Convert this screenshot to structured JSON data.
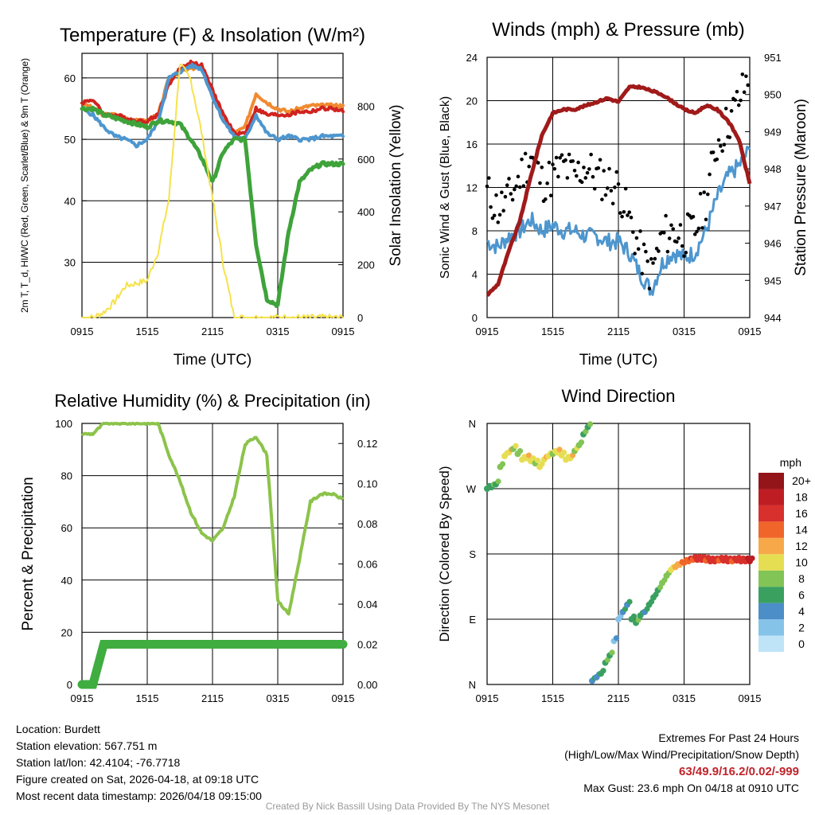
{
  "chart_data": [
    {
      "type": "line",
      "title": "Temperature (F) & Insolation (W/m²)",
      "xlabel": "Time (UTC)",
      "ylabel_left": "2m T, T_d, HI/WC (Red, Green, Scarlet/Blue) & 9m T (Orange)",
      "ylabel_right": "Solar Insolation (Yellow)",
      "x_ticks": [
        "0915",
        "1515",
        "2115",
        "0315",
        "0915"
      ],
      "ylim_left": [
        21,
        64
      ],
      "y_ticks_left": [
        30,
        40,
        50,
        60
      ],
      "ylim_right": [
        0,
        1000
      ],
      "y_ticks_right": [
        0,
        200,
        400,
        600,
        800
      ],
      "x_hours": [
        0,
        1,
        2,
        3,
        4,
        5,
        6,
        7,
        8,
        9,
        10,
        11,
        12,
        13,
        14,
        15,
        16,
        17,
        18,
        19,
        20,
        21,
        22,
        23,
        24
      ],
      "series": [
        {
          "name": "9m T",
          "color": "#f08a30",
          "axis": "left",
          "values": [
            56,
            55,
            54,
            54,
            53.5,
            53,
            53,
            54,
            60,
            61,
            61.5,
            62,
            57,
            53,
            51,
            52,
            57.5,
            56,
            55,
            54.5,
            55,
            55.5,
            55.5,
            55.5,
            55.5
          ]
        },
        {
          "name": "2m T",
          "color": "#d0231f",
          "axis": "left",
          "values": [
            56,
            56.5,
            54,
            54,
            53.5,
            53,
            53,
            54,
            59,
            61.5,
            62.5,
            62,
            58,
            54,
            51,
            51,
            55,
            54,
            54,
            54,
            54.5,
            54.5,
            55,
            55,
            54.5
          ]
        },
        {
          "name": "HI/WC",
          "color": "#4d96cf",
          "axis": "left",
          "values": [
            55,
            54,
            52,
            50.5,
            50,
            49,
            50,
            53,
            60,
            61,
            62,
            61.5,
            57,
            53,
            50.5,
            50,
            54,
            51,
            50,
            50.5,
            50,
            50,
            50.5,
            50.5,
            50.5
          ]
        },
        {
          "name": "T_d",
          "color": "#3ea33a",
          "axis": "left",
          "values": [
            55,
            55,
            54,
            53.5,
            53,
            52.5,
            52,
            53,
            53,
            52.5,
            50,
            47,
            43,
            48,
            50,
            50,
            33,
            24,
            23,
            35,
            43,
            45,
            46,
            46,
            46
          ]
        },
        {
          "name": "Solar Insolation",
          "color": "#f5e24a",
          "axis": "right",
          "values": [
            0,
            0,
            20,
            60,
            120,
            130,
            140,
            250,
            450,
            960,
            900,
            700,
            450,
            200,
            0,
            0,
            0,
            0,
            0,
            0,
            0,
            0,
            0,
            0,
            0
          ]
        }
      ]
    },
    {
      "type": "line",
      "title": "Winds (mph) & Pressure (mb)",
      "xlabel": "Time (UTC)",
      "ylabel_left": "Sonic Wind & Gust (Blue, Black)",
      "ylabel_right": "Station Pressure (Maroon)",
      "x_ticks": [
        "0915",
        "1515",
        "2115",
        "0315",
        "0915"
      ],
      "ylim_left": [
        0,
        24
      ],
      "y_ticks_left": [
        0,
        4,
        8,
        12,
        16,
        20,
        24
      ],
      "ylim_right": [
        944,
        951
      ],
      "y_ticks_right": [
        944,
        945,
        946,
        947,
        948,
        949,
        950,
        951
      ],
      "x_hours": [
        0,
        1,
        2,
        3,
        4,
        5,
        6,
        7,
        8,
        9,
        10,
        11,
        12,
        13,
        14,
        15,
        16,
        17,
        18,
        19,
        20,
        21,
        22,
        23,
        24
      ],
      "series": [
        {
          "name": "Sonic Wind",
          "color": "#4d96cf",
          "axis": "left",
          "values": [
            7,
            6.5,
            7.5,
            8,
            9,
            8,
            8.5,
            8,
            8,
            7.5,
            7.5,
            7,
            7,
            6,
            4,
            2.5,
            5,
            6,
            5.5,
            6,
            8,
            11,
            13,
            14,
            15.5
          ]
        },
        {
          "name": "Gust",
          "color": "#000000",
          "axis": "left",
          "style": "dots",
          "values": [
            11.5,
            10,
            11,
            13,
            15,
            12.5,
            13,
            14,
            13,
            14,
            13,
            12.5,
            12,
            9,
            6,
            4,
            7.5,
            8,
            7.5,
            8,
            11,
            16,
            18,
            20,
            22.5
          ]
        },
        {
          "name": "Station Pressure",
          "color": "#a01a1a",
          "axis": "right",
          "values": [
            944.6,
            944.9,
            945.8,
            946.6,
            947.8,
            948.9,
            949.5,
            949.6,
            949.6,
            949.7,
            949.8,
            949.9,
            949.8,
            950.2,
            950.2,
            950.1,
            950.0,
            949.8,
            949.6,
            949.5,
            949.7,
            949.6,
            949.3,
            948.8,
            947.6
          ]
        }
      ]
    },
    {
      "type": "line",
      "title": "Relative Humidity (%) & Precipitation (in)",
      "xlabel": "",
      "ylabel_left": "Percent & Precipitation",
      "ylabel_right": "",
      "x_ticks": [
        "0915",
        "1515",
        "2115",
        "0315",
        "0915"
      ],
      "ylim_left": [
        0,
        100
      ],
      "y_ticks_left": [
        0,
        20,
        40,
        60,
        80,
        100
      ],
      "ylim_right": [
        0,
        0.13
      ],
      "y_ticks_right": [
        "0.00",
        "0.02",
        "0.04",
        "0.06",
        "0.08",
        "0.10",
        "0.12"
      ],
      "x_hours": [
        0,
        1,
        2,
        3,
        4,
        5,
        6,
        7,
        8,
        9,
        10,
        11,
        12,
        13,
        14,
        15,
        16,
        17,
        18,
        19,
        20,
        21,
        22,
        23,
        24
      ],
      "series": [
        {
          "name": "Relative Humidity",
          "color": "#8cc34b",
          "axis": "left",
          "values": [
            96,
            96,
            100,
            100,
            100,
            100,
            100,
            100,
            88,
            78,
            66,
            58,
            55,
            60,
            72,
            92,
            95,
            88,
            32,
            27,
            48,
            70,
            73,
            73,
            71
          ]
        },
        {
          "name": "Precipitation",
          "color": "#3fad3f",
          "axis": "right",
          "values": [
            0,
            0,
            0.02,
            0.02,
            0.02,
            0.02,
            0.02,
            0.02,
            0.02,
            0.02,
            0.02,
            0.02,
            0.02,
            0.02,
            0.02,
            0.02,
            0.02,
            0.02,
            0.02,
            0.02,
            0.02,
            0.02,
            0.02,
            0.02,
            0.02
          ]
        }
      ]
    },
    {
      "type": "scatter",
      "title": "Wind Direction",
      "ylabel": "Direction (Colored By Speed)",
      "x_ticks": [
        "0915",
        "1515",
        "2115",
        "0315",
        "0915"
      ],
      "y_ticks": [
        "N",
        "E",
        "S",
        "W",
        "N"
      ],
      "ylim_degrees": [
        0,
        360
      ],
      "colorbar_title": "mph",
      "colorbar_labels": [
        "0",
        "2",
        "4",
        "6",
        "8",
        "10",
        "12",
        "14",
        "16",
        "18",
        "20+"
      ],
      "colorbar_colors": [
        "#bfe4f8",
        "#86c3e9",
        "#4b8ec8",
        "#3aa060",
        "#82c455",
        "#e6de52",
        "#f7a94a",
        "#f06529",
        "#d8302d",
        "#bd1d23",
        "#931419"
      ],
      "points_hour": [
        0,
        0.4,
        0.8,
        1.2,
        1.6,
        2.0,
        2.4,
        2.8,
        3.2,
        3.6,
        4.0,
        4.4,
        4.8,
        5.2,
        5.6,
        6.0,
        6.4,
        6.8,
        7.2,
        7.6,
        8.0,
        8.4,
        8.8,
        9.2,
        9.6,
        10.0,
        10.4,
        10.8,
        11.2,
        11.6,
        12.0,
        12.4,
        12.8,
        13.2,
        13.6,
        14.0,
        14.4,
        14.8,
        15.2,
        15.6,
        16.0,
        16.4,
        16.8,
        17.2,
        17.6,
        18.0,
        18.4,
        18.8,
        19.2,
        19.6,
        20.0,
        20.4,
        20.8,
        21.2,
        21.6,
        22.0,
        22.4,
        22.8,
        23.2,
        23.6,
        24.0
      ],
      "points_dir": [
        270,
        272,
        276,
        300,
        315,
        320,
        325,
        318,
        310,
        312,
        308,
        305,
        300,
        310,
        315,
        318,
        320,
        316,
        310,
        312,
        322,
        330,
        345,
        355,
        5,
        10,
        15,
        30,
        40,
        60,
        90,
        100,
        110,
        90,
        85,
        95,
        100,
        110,
        120,
        130,
        140,
        150,
        158,
        162,
        165,
        168,
        170,
        172,
        172,
        172,
        171,
        170,
        170,
        171,
        171,
        170,
        170,
        171,
        170,
        170,
        170
      ],
      "points_speed": [
        5,
        6,
        6,
        7,
        9,
        10,
        8,
        7,
        9,
        10,
        9,
        8,
        9,
        10,
        9,
        8,
        10,
        9,
        9,
        10,
        8,
        7,
        6,
        6,
        4,
        3,
        5,
        6,
        6,
        2,
        1,
        4,
        4,
        5,
        6,
        5,
        4,
        5,
        5,
        6,
        7,
        7,
        9,
        11,
        12,
        13,
        14,
        14,
        15,
        15,
        14,
        15,
        15,
        14,
        15,
        15,
        14,
        15,
        15,
        16,
        17
      ]
    }
  ],
  "info_left": {
    "location": "Location: Burdett",
    "elevation": "Station elevation: 567.751 m",
    "latlon": "Station lat/lon: 42.4104; -76.7718",
    "created": "Figure created on Sat, 2026-04-18, at 09:18 UTC",
    "recent": "Most recent data timestamp: 2026/04/18 09:15:00"
  },
  "info_right": {
    "heading": "Extremes For Past 24 Hours",
    "legend": "(High/Low/Max Wind/Precipitation/Snow Depth)",
    "values": "63/49.9/16.2/0.02/-999",
    "gust": "Max Gust: 23.6 mph On 04/18 at 0910 UTC"
  },
  "credit": "Created By Nick Bassill Using Data Provided By The NYS Mesonet"
}
